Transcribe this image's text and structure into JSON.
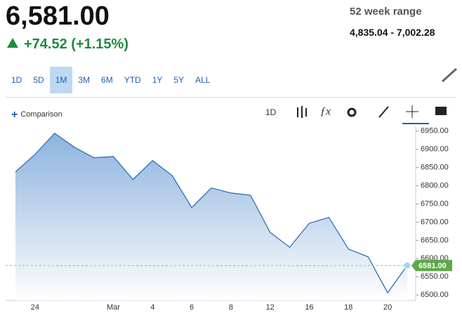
{
  "header": {
    "price": "6,581.00",
    "change": "+74.52 (+1.15%)",
    "range_label": "52 week range",
    "range_value": "4,835.04 - 7,002.28"
  },
  "range_buttons": [
    "1D",
    "5D",
    "1M",
    "3M",
    "6M",
    "YTD",
    "1Y",
    "5Y",
    "ALL"
  ],
  "toolbar": {
    "comparison": "Comparison",
    "interval": "1D"
  },
  "chart_data": {
    "type": "area",
    "categories": [
      null,
      "24",
      null,
      null,
      null,
      "Mar",
      null,
      "4",
      null,
      "6",
      null,
      "8",
      null,
      "12",
      null,
      "16",
      null,
      "18",
      null,
      "20",
      null
    ],
    "values": [
      6838,
      6886,
      6944,
      6906,
      6877,
      6880,
      6817,
      6869,
      6828,
      6740,
      6794,
      6780,
      6774,
      6672,
      6631,
      6697,
      6713,
      6626,
      6605,
      6506,
      6581
    ],
    "last_value_label": "6581.00",
    "color": "#2f6db5",
    "ylim": [
      6485,
      6963
    ],
    "yticks": [
      {
        "value": 6500,
        "label": "6500.00"
      },
      {
        "value": 6550,
        "label": "6550.00"
      },
      {
        "value": 6600,
        "label": "6600.00"
      },
      {
        "value": 6650,
        "label": "6650.00"
      },
      {
        "value": 6700,
        "label": "6700.00"
      },
      {
        "value": 6750,
        "label": "6750.00"
      },
      {
        "value": 6800,
        "label": "6800.00"
      },
      {
        "value": 6850,
        "label": "6850.00"
      },
      {
        "value": 6900,
        "label": "6900.00"
      },
      {
        "value": 6950,
        "label": "6950.00"
      }
    ],
    "grid": false
  }
}
